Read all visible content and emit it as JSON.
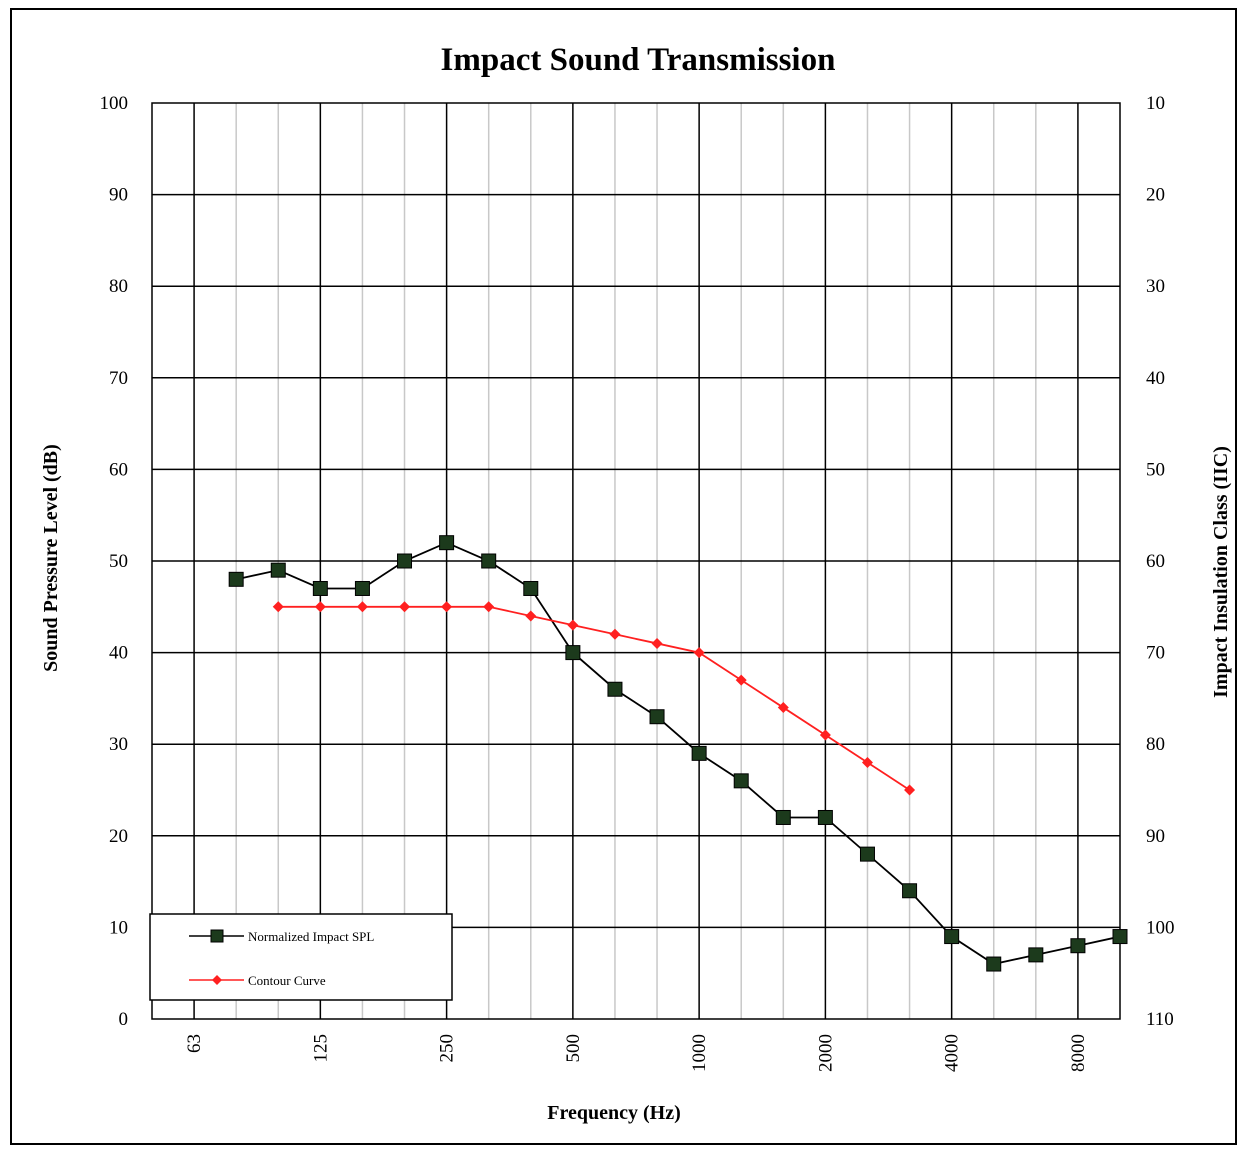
{
  "chart_data": {
    "type": "line",
    "title": "Impact Sound Transmission",
    "xlabel": "Frequency (Hz)",
    "ylabel": "Sound Pressure Level (dB)",
    "y2label": "Impact Insulation Class (IIC)",
    "x_scale": "log (1/3-octave bands)",
    "x_tick_labels": [
      "63",
      "125",
      "250",
      "500",
      "1000",
      "2000",
      "4000",
      "8000"
    ],
    "x_bands": [
      "63",
      "80",
      "100",
      "125",
      "160",
      "200",
      "250",
      "315",
      "400",
      "500",
      "630",
      "800",
      "1000",
      "1250",
      "1600",
      "2000",
      "2500",
      "3150",
      "4000",
      "5000",
      "6300",
      "8000",
      "10000"
    ],
    "ylim": [
      0,
      100
    ],
    "y_ticks": [
      0,
      10,
      20,
      30,
      40,
      50,
      60,
      70,
      80,
      90,
      100
    ],
    "y2_ticks": [
      110,
      100,
      90,
      80,
      70,
      60,
      50,
      40,
      30,
      20,
      10
    ],
    "grid": true,
    "legend_position": "bottom-left",
    "series": [
      {
        "name": "Normalized Impact SPL",
        "color": "#000000",
        "marker": "square",
        "marker_fill": "#1c3a1c",
        "x": [
          "80",
          "100",
          "125",
          "160",
          "200",
          "250",
          "315",
          "400",
          "500",
          "630",
          "800",
          "1000",
          "1250",
          "1600",
          "2000",
          "2500",
          "3150",
          "4000",
          "5000",
          "6300",
          "8000",
          "10000"
        ],
        "values": [
          48,
          49,
          47,
          47,
          50,
          52,
          50,
          47,
          40,
          36,
          33,
          29,
          26,
          22,
          22,
          18,
          14,
          9,
          6,
          7,
          8,
          9
        ]
      },
      {
        "name": "Contour Curve",
        "color": "#ff2020",
        "marker": "diamond",
        "marker_fill": "#ff2020",
        "x": [
          "100",
          "125",
          "160",
          "200",
          "250",
          "315",
          "400",
          "500",
          "630",
          "800",
          "1000",
          "1250",
          "1600",
          "2000",
          "2500",
          "3150"
        ],
        "values": [
          45,
          45,
          45,
          45,
          45,
          45,
          44,
          43,
          42,
          41,
          40,
          37,
          34,
          31,
          28,
          25
        ]
      }
    ]
  }
}
